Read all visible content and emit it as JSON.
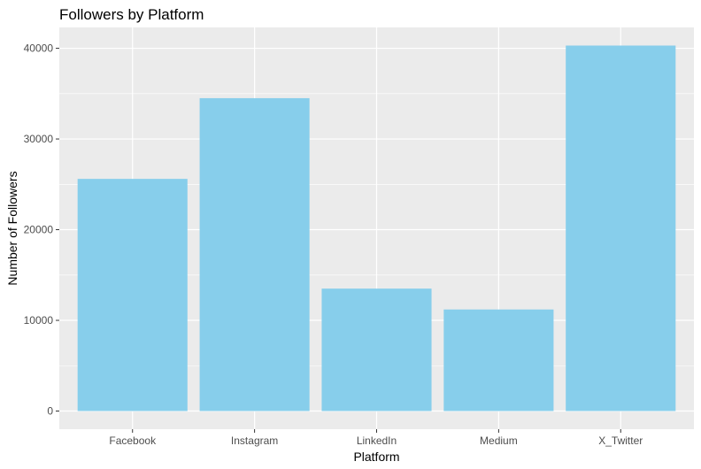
{
  "chart_data": {
    "type": "bar",
    "title": "Followers by Platform",
    "xlabel": "Platform",
    "ylabel": "Number of Followers",
    "categories": [
      "Facebook",
      "Instagram",
      "LinkedIn",
      "Medium",
      "X_Twitter"
    ],
    "values": [
      25600,
      34500,
      13500,
      11200,
      40300
    ],
    "ylim": [
      -2000,
      42300
    ],
    "yticks": [
      0,
      10000,
      20000,
      30000,
      40000
    ],
    "ytick_labels": [
      "0",
      "10000",
      "20000",
      "30000",
      "40000"
    ],
    "grid": true,
    "legend": "none",
    "colors": {
      "bar": "#87CEEB",
      "panel_background": "#EBEBEB",
      "gridline": "#FFFFFF"
    }
  }
}
